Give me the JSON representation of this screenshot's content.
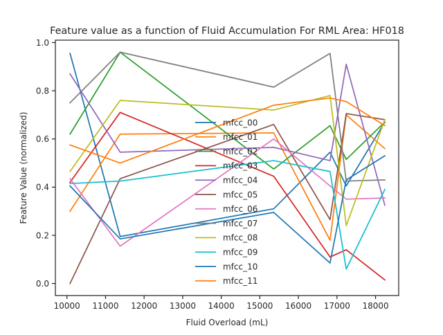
{
  "chart_data": {
    "type": "line",
    "title": "Feature value as a function of Fluid Accumulation For RML Area: HF018",
    "xlabel": "Fluid Overload (mL)",
    "ylabel": "Feature Value (normalized)",
    "xlim": [
      9700,
      18600
    ],
    "ylim": [
      -0.05,
      1.01
    ],
    "x_ticks": [
      10000,
      11000,
      12000,
      13000,
      14000,
      15000,
      16000,
      17000,
      18000
    ],
    "y_ticks": [
      0.0,
      0.2,
      0.4,
      0.6,
      0.8,
      1.0
    ],
    "x_tick_labels": [
      "10000",
      "11000",
      "12000",
      "13000",
      "14000",
      "15000",
      "16000",
      "17000",
      "18000"
    ],
    "y_tick_labels": [
      "0.0",
      "0.2",
      "0.4",
      "0.6",
      "0.8",
      "1.0"
    ],
    "grid": false,
    "legend_position": "center",
    "x": [
      10080,
      11380,
      15360,
      16820,
      17240,
      18240
    ],
    "series": [
      {
        "name": "mfcc_00",
        "color": "#1f77b4",
        "values": [
          0.955,
          0.195,
          0.31,
          0.545,
          0.405,
          0.67
        ]
      },
      {
        "name": "mfcc_01",
        "color": "#ff7f0e",
        "values": [
          0.3,
          0.62,
          0.625,
          0.18,
          0.7,
          0.56
        ]
      },
      {
        "name": "mfcc_02",
        "color": "#2ca02c",
        "values": [
          0.62,
          0.96,
          0.475,
          0.655,
          0.515,
          0.67
        ]
      },
      {
        "name": "mfcc_03",
        "color": "#d62728",
        "values": [
          0.42,
          0.71,
          0.445,
          0.11,
          0.14,
          0.015
        ]
      },
      {
        "name": "mfcc_04",
        "color": "#9467bd",
        "values": [
          0.87,
          0.545,
          0.565,
          0.51,
          0.91,
          0.325
        ]
      },
      {
        "name": "mfcc_05",
        "color": "#8c564b",
        "values": [
          0.0,
          0.435,
          0.66,
          0.265,
          0.705,
          0.68
        ]
      },
      {
        "name": "mfcc_06",
        "color": "#e377c2",
        "values": [
          0.435,
          0.155,
          0.6,
          0.405,
          0.35,
          0.355
        ]
      },
      {
        "name": "mfcc_07",
        "color": "#7f7f7f",
        "values": [
          0.75,
          0.96,
          0.815,
          0.955,
          0.425,
          0.43
        ]
      },
      {
        "name": "mfcc_08",
        "color": "#bcbd22",
        "values": [
          0.465,
          0.76,
          0.72,
          0.78,
          0.24,
          0.68
        ]
      },
      {
        "name": "mfcc_09",
        "color": "#17becf",
        "values": [
          0.415,
          0.425,
          0.51,
          0.465,
          0.06,
          0.39
        ]
      },
      {
        "name": "mfcc_10",
        "color": "#1f77b4",
        "values": [
          0.405,
          0.185,
          0.295,
          0.085,
          0.43,
          0.53
        ]
      },
      {
        "name": "mfcc_11",
        "color": "#ff7f0e",
        "values": [
          0.575,
          0.5,
          0.74,
          0.77,
          0.755,
          0.655
        ]
      }
    ]
  }
}
